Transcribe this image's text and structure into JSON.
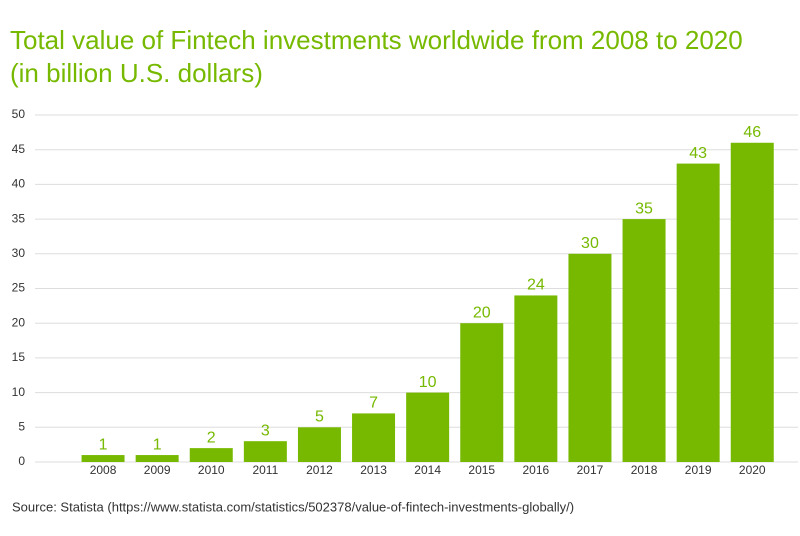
{
  "chart_data": {
    "type": "bar",
    "title": "Total value of Fintech investments worldwide from 2008 to 2020",
    "subtitle": "(in billion U.S. dollars)",
    "categories": [
      "2008",
      "2009",
      "2010",
      "2011",
      "2012",
      "2013",
      "2014",
      "2015",
      "2016",
      "2017",
      "2018",
      "2019",
      "2020"
    ],
    "values": [
      1,
      1,
      2,
      3,
      5,
      7,
      10,
      20,
      24,
      30,
      35,
      43,
      46
    ],
    "color": "#76b900",
    "ylim": [
      0,
      50
    ],
    "yticks": [
      0,
      5,
      10,
      15,
      20,
      25,
      30,
      35,
      40,
      45,
      50
    ],
    "grid": true,
    "source": "Source: Statista (https://www.statista.com/statistics/502378/value-of-fintech-investments-globally/)"
  }
}
